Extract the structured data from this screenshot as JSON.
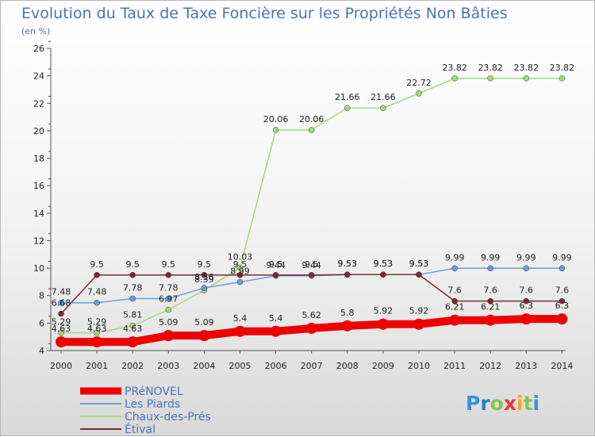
{
  "chart_data": {
    "type": "line",
    "title": "Evolution du Taux de Taxe Foncière sur les Propriétés Non Bâties",
    "ylabel": "(en %)",
    "xlabel": "",
    "x": [
      "2000",
      "2001",
      "2002",
      "2003",
      "2004",
      "2005",
      "2006",
      "2007",
      "2008",
      "2009",
      "2010",
      "2011",
      "2012",
      "2013",
      "2014"
    ],
    "ylim": [
      4,
      26
    ],
    "yticks": [
      "4",
      "6",
      "8",
      "10",
      "12",
      "14",
      "16",
      "18",
      "20",
      "22",
      "24",
      "26"
    ],
    "grid": false,
    "legend_position": "bottom-left",
    "series": [
      {
        "name": "PRéNOVEL",
        "color": "#ee0000",
        "values": [
          4.63,
          4.63,
          4.63,
          5.09,
          5.09,
          5.4,
          5.4,
          5.62,
          5.8,
          5.92,
          5.92,
          6.21,
          6.21,
          6.3,
          6.3
        ],
        "labels": [
          "4.63",
          "4.63",
          "4.63",
          "5.09",
          "5.09",
          "5.4",
          "5.4",
          "5.62",
          "5.8",
          "5.92",
          "5.92",
          "6.21",
          "6.21",
          "6.3",
          "6.3"
        ]
      },
      {
        "name": "Les Piards",
        "color": "#6a9fd6",
        "values": [
          7.48,
          7.48,
          7.78,
          7.78,
          8.56,
          8.99,
          9.44,
          9.44,
          9.53,
          9.53,
          9.53,
          9.99,
          9.99,
          9.99,
          9.99
        ],
        "labels": [
          "7.48",
          "7.48",
          "7.78",
          "7.78",
          "8.56",
          "8.99",
          "9.44",
          "9.44",
          "9.53",
          "9.53",
          "9.53",
          "9.99",
          "9.99",
          "9.99",
          "9.99"
        ]
      },
      {
        "name": "Chaux-des-Prés",
        "color": "#a3d97a",
        "values": [
          5.29,
          5.29,
          5.81,
          6.97,
          8.39,
          10.03,
          20.06,
          20.06,
          21.66,
          21.66,
          22.72,
          23.82,
          23.82,
          23.82,
          23.82
        ],
        "labels": [
          "5.29",
          "5.29",
          "5.81",
          "6.97",
          "8.39",
          "10.03",
          "20.06",
          "20.06",
          "21.66",
          "21.66",
          "22.72",
          "23.82",
          "23.82",
          "23.82",
          "23.82"
        ]
      },
      {
        "name": "Étival",
        "color": "#7a2a35",
        "values": [
          6.68,
          9.5,
          9.5,
          9.5,
          9.5,
          9.5,
          9.5,
          9.5,
          9.53,
          9.53,
          9.53,
          7.6,
          7.6,
          7.6,
          7.6
        ],
        "labels": [
          "6.68",
          "9.5",
          "9.5",
          "9.5",
          "9.5",
          "9.5",
          "9.5",
          "9.5",
          "9.53",
          "9.53",
          "9.53",
          "7.6",
          "7.6",
          "7.6",
          "7.6"
        ]
      }
    ]
  },
  "logo": {
    "text": "Proxiti"
  }
}
